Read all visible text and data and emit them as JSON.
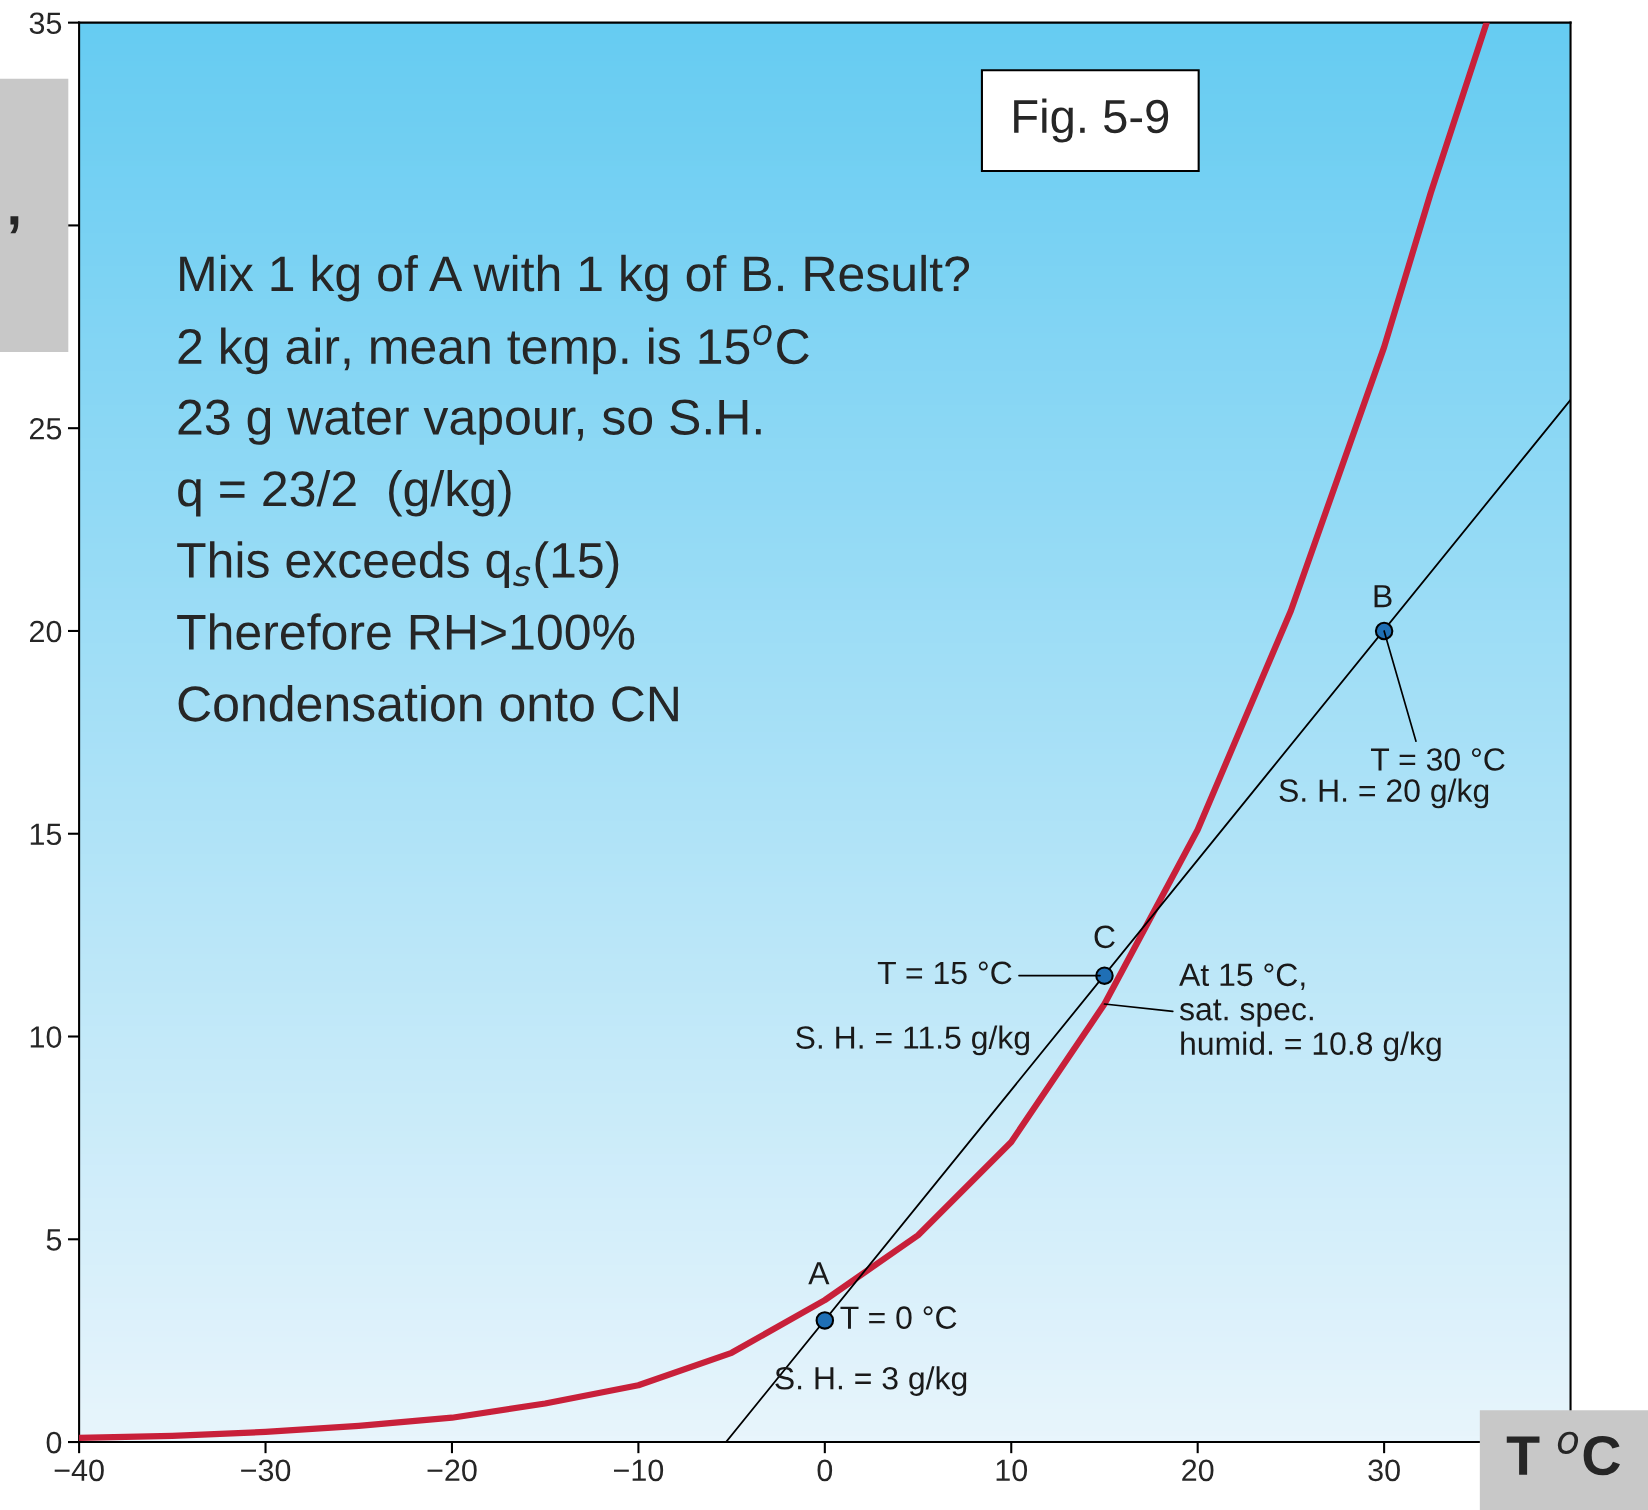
{
  "chart_data": {
    "type": "line",
    "title": "Fig. 5-9",
    "xlabel": "T $^{o}$C",
    "ylabel": ",",
    "xlim": [
      -40,
      40
    ],
    "xticks": [
      -40,
      -30,
      -20,
      -10,
      0,
      10,
      20,
      30
    ],
    "ylim": [
      0,
      35
    ],
    "yticks": [
      0,
      5,
      10,
      15,
      20,
      25,
      {
        "value": 30,
        "label": null
      },
      35
    ],
    "grid": false,
    "marker": "none",
    "line_style": "solid",
    "series": [
      {
        "color": "#c8203a",
        "x": [
          -40,
          -35,
          -30,
          -25,
          -20,
          -15,
          -10,
          -5,
          0,
          5,
          10,
          15,
          20,
          25,
          30,
          32.5,
          35.5
        ],
        "values": [
          0.1,
          0.15,
          0.25,
          0.4,
          0.6,
          0.95,
          1.4,
          2.2,
          3.5,
          5.1,
          7.4,
          10.8,
          15.1,
          20.5,
          27,
          30.8,
          35
        ]
      },
      {
        "color": "#000000",
        "x": [
          -5.3,
          40
        ],
        "values": [
          0,
          25.7
        ]
      },
      {
        "type": "scatter",
        "color": "#1f6fb5",
        "marker": "circle",
        "x": [
          0,
          15,
          30
        ],
        "values": [
          3,
          11.5,
          20
        ]
      }
    ],
    "annotations": [
      "Mix 1 kg of A with 1 kg of B. Result?",
      "2 kg air, mean temp. is 15$^{o}$C",
      "23 g water vapour, so S.H.",
      "q = 23/2  (g/kg)",
      "This exceeds q$_{s}$(15)",
      "Therefore RH>100%",
      "Condensation onto CN",
      "A",
      "T = 0 °C",
      "S. H. = 3 g/kg",
      "B",
      {
        "text": "T = 30 °C",
        "x": 30,
        "y": 20
      },
      "S. H. = 20 g/kg",
      "C",
      "T = 15 °C",
      "S. H. = 11.5 g/kg",
      "At 15 °C,\nsat. spec.\nhumid. = 10.8 g/kg"
    ]
  }
}
